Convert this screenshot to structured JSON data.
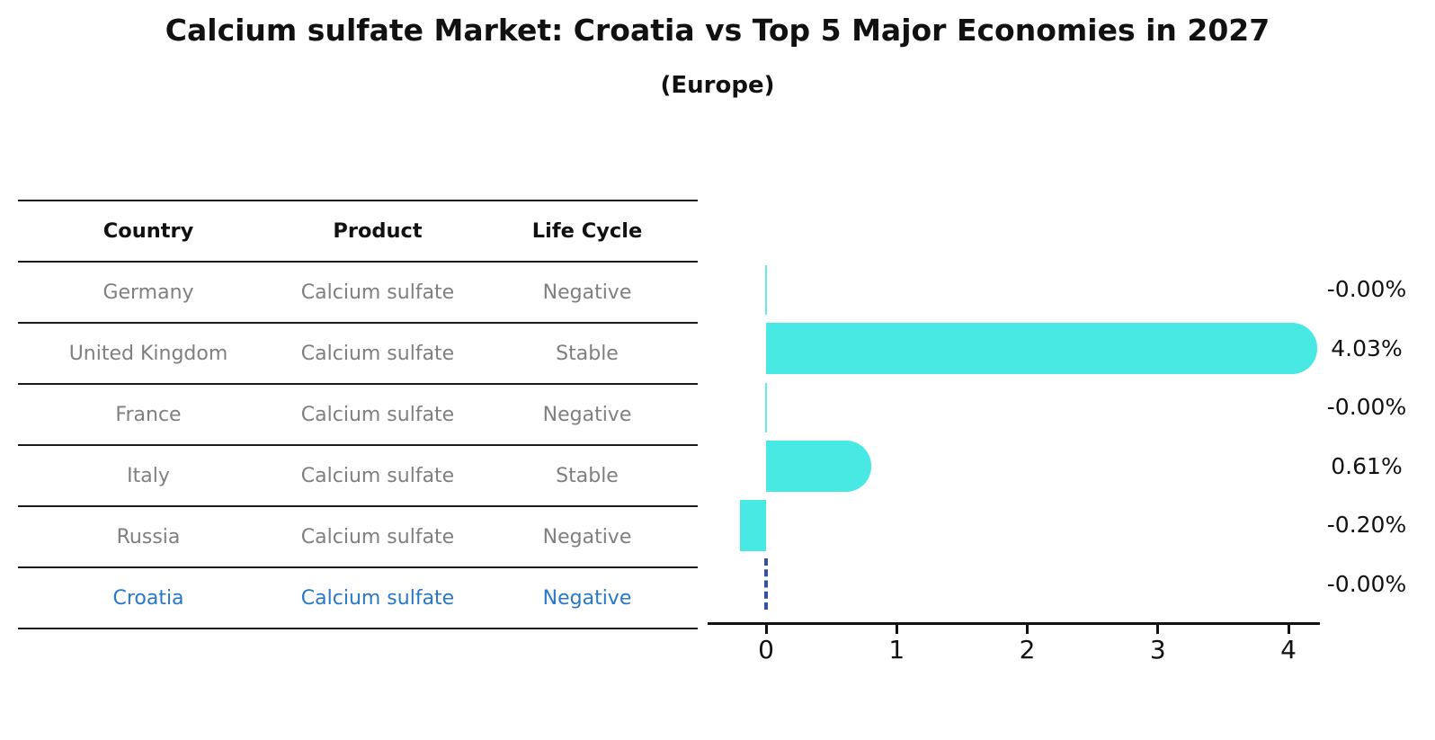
{
  "title": "Calcium sulfate Market: Croatia vs Top 5 Major Economies in 2027",
  "subtitle": "(Europe)",
  "table": {
    "headers": [
      "Country",
      "Product",
      "Life Cycle"
    ],
    "rows": [
      {
        "country": "Germany",
        "product": "Calcium sulfate",
        "life_cycle": "Negative",
        "highlighted": false
      },
      {
        "country": "United Kingdom",
        "product": "Calcium sulfate",
        "life_cycle": "Stable",
        "highlighted": false
      },
      {
        "country": "France",
        "product": "Calcium sulfate",
        "life_cycle": "Negative",
        "highlighted": false
      },
      {
        "country": "Italy",
        "product": "Calcium sulfate",
        "life_cycle": "Stable",
        "highlighted": false
      },
      {
        "country": "Russia",
        "product": "Calcium sulfate",
        "life_cycle": "Negative",
        "highlighted": false
      },
      {
        "country": "Croatia",
        "product": "Calcium sulfate",
        "life_cycle": "Negative",
        "highlighted": true
      }
    ]
  },
  "chart_data": {
    "type": "bar",
    "orientation": "horizontal",
    "title": "Calcium sulfate Market: Croatia vs Top 5 Major Economies in 2027",
    "subtitle": "(Europe)",
    "categories": [
      "Germany",
      "United Kingdom",
      "France",
      "Italy",
      "Russia",
      "Croatia"
    ],
    "values": [
      -0.0,
      4.03,
      -0.0,
      0.61,
      -0.2,
      -0.0
    ],
    "value_labels": [
      "-0.00%",
      "4.03%",
      "-0.00%",
      "0.61%",
      "-0.20%",
      "-0.00%"
    ],
    "target_category": "Croatia",
    "target_marker": "dashed-zero-line",
    "xticks": [
      "0",
      "1",
      "2",
      "3",
      "4"
    ],
    "xlim": [
      -0.45,
      4.24
    ],
    "grid": false,
    "legend": false,
    "colors": {
      "bar": "#48E8E3",
      "target_line": "#3552A0",
      "highlight_text": "#2878C8",
      "body_text": "#7f7f7f",
      "axis": "#111111"
    }
  }
}
